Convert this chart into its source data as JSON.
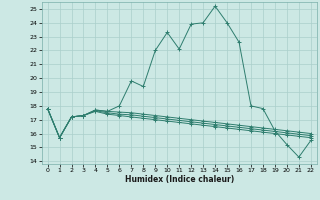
{
  "xlabel": "Humidex (Indice chaleur)",
  "bg_color": "#cce8e4",
  "grid_color": "#aacfcb",
  "line_color": "#2e7d6e",
  "xlim": [
    -0.5,
    22.5
  ],
  "ylim": [
    13.8,
    25.5
  ],
  "yticks": [
    14,
    15,
    16,
    17,
    18,
    19,
    20,
    21,
    22,
    23,
    24,
    25
  ],
  "xticks": [
    0,
    1,
    2,
    3,
    4,
    5,
    6,
    7,
    8,
    9,
    10,
    11,
    12,
    13,
    14,
    15,
    16,
    17,
    18,
    19,
    20,
    21,
    22
  ],
  "series": [
    [
      17.8,
      15.7,
      17.2,
      17.3,
      17.7,
      17.6,
      18.0,
      19.8,
      19.4,
      22.0,
      23.3,
      22.1,
      23.9,
      24.0,
      25.2,
      24.0,
      22.6,
      18.0,
      17.8,
      16.2,
      15.2,
      14.3,
      15.5
    ],
    [
      17.8,
      15.7,
      17.2,
      17.3,
      17.6,
      17.4,
      17.3,
      17.2,
      17.1,
      17.0,
      16.9,
      16.8,
      16.7,
      16.6,
      16.5,
      16.4,
      16.3,
      16.2,
      16.1,
      16.0,
      15.9,
      15.8,
      15.7
    ],
    [
      17.8,
      15.7,
      17.2,
      17.3,
      17.65,
      17.5,
      17.4,
      17.35,
      17.25,
      17.15,
      17.05,
      16.95,
      16.85,
      16.75,
      16.65,
      16.55,
      16.45,
      16.35,
      16.25,
      16.15,
      16.05,
      15.95,
      15.85
    ],
    [
      17.8,
      15.7,
      17.2,
      17.3,
      17.7,
      17.6,
      17.55,
      17.5,
      17.4,
      17.3,
      17.2,
      17.1,
      17.0,
      16.9,
      16.8,
      16.7,
      16.6,
      16.5,
      16.4,
      16.3,
      16.2,
      16.1,
      16.0
    ]
  ]
}
